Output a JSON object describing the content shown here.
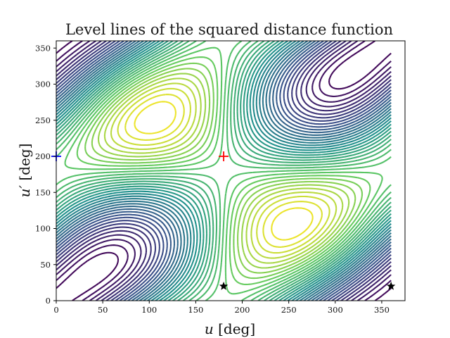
{
  "chart_data": {
    "type": "contour",
    "title": "Level lines of the squared distance function",
    "xlabel_var": "u",
    "xlabel_unit": " [deg]",
    "ylabel_var": "u′",
    "ylabel_unit": " [deg]",
    "xlim": [
      0,
      375
    ],
    "ylim": [
      0,
      360
    ],
    "xticks": [
      0,
      50,
      100,
      150,
      200,
      250,
      300,
      350
    ],
    "yticks": [
      0,
      50,
      100,
      150,
      200,
      250,
      300,
      350
    ],
    "grid": false,
    "colormap": [
      "#440154",
      "#3b528b",
      "#21918c",
      "#5ec962",
      "#fde725"
    ],
    "markers": [
      {
        "name": "maximum",
        "symbol": "plus",
        "x": 180,
        "y": 200,
        "color": "#ff0000"
      },
      {
        "name": "boundary-point",
        "symbol": "plus",
        "x": 0,
        "y": 200,
        "color": "#0000ff"
      },
      {
        "name": "critical-point-1",
        "symbol": "star",
        "x": 180,
        "y": 20,
        "color": "#000000"
      },
      {
        "name": "critical-point-2",
        "symbol": "star",
        "x": 360,
        "y": 20,
        "color": "#000000"
      }
    ]
  }
}
